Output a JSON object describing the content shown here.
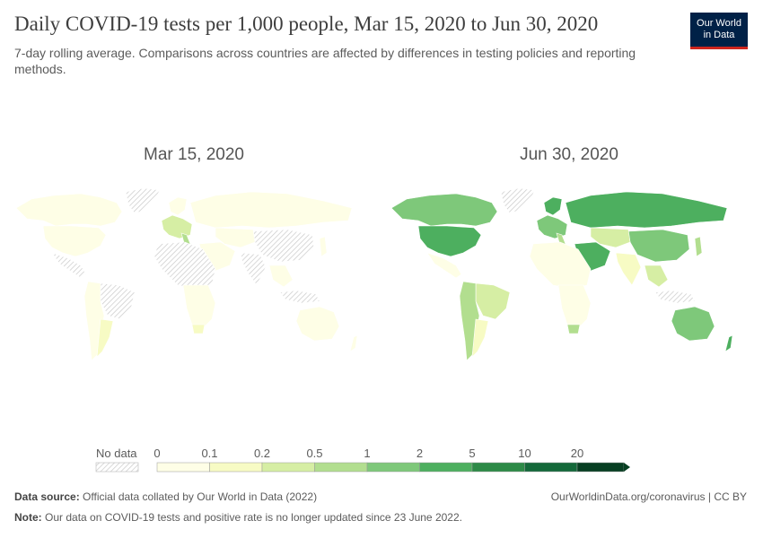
{
  "header": {
    "title": "Daily COVID-19 tests per 1,000 people, Mar 15, 2020 to Jun 30, 2020",
    "subtitle": "7-day rolling average. Comparisons across countries are affected by differences in testing policies and reporting methods."
  },
  "logo": {
    "line1": "Our World",
    "line2": "in Data",
    "bg_color": "#002147",
    "accent_color": "#ce261e"
  },
  "maps": {
    "left_title": "Mar 15, 2020",
    "right_title": "Jun 30, 2020"
  },
  "legend": {
    "no_data_label": "No data",
    "ticks": [
      "0",
      "0.1",
      "0.2",
      "0.5",
      "1",
      "2",
      "5",
      "10",
      "20"
    ],
    "colors": [
      "#fefee6",
      "#f7fbc4",
      "#d6eea4",
      "#b2de8f",
      "#7ec87a",
      "#4daf5f",
      "#2d8a47",
      "#14693a",
      "#073f22"
    ]
  },
  "footer": {
    "source_label": "Data source:",
    "source_text": "Official data collated by Our World in Data (2022)",
    "note_label": "Note:",
    "note_text": "Our data on COVID-19 tests and positive rate is no longer updated since 23 June 2022.",
    "url_text": "OurWorldinData.org/coronavirus | CC BY"
  }
}
